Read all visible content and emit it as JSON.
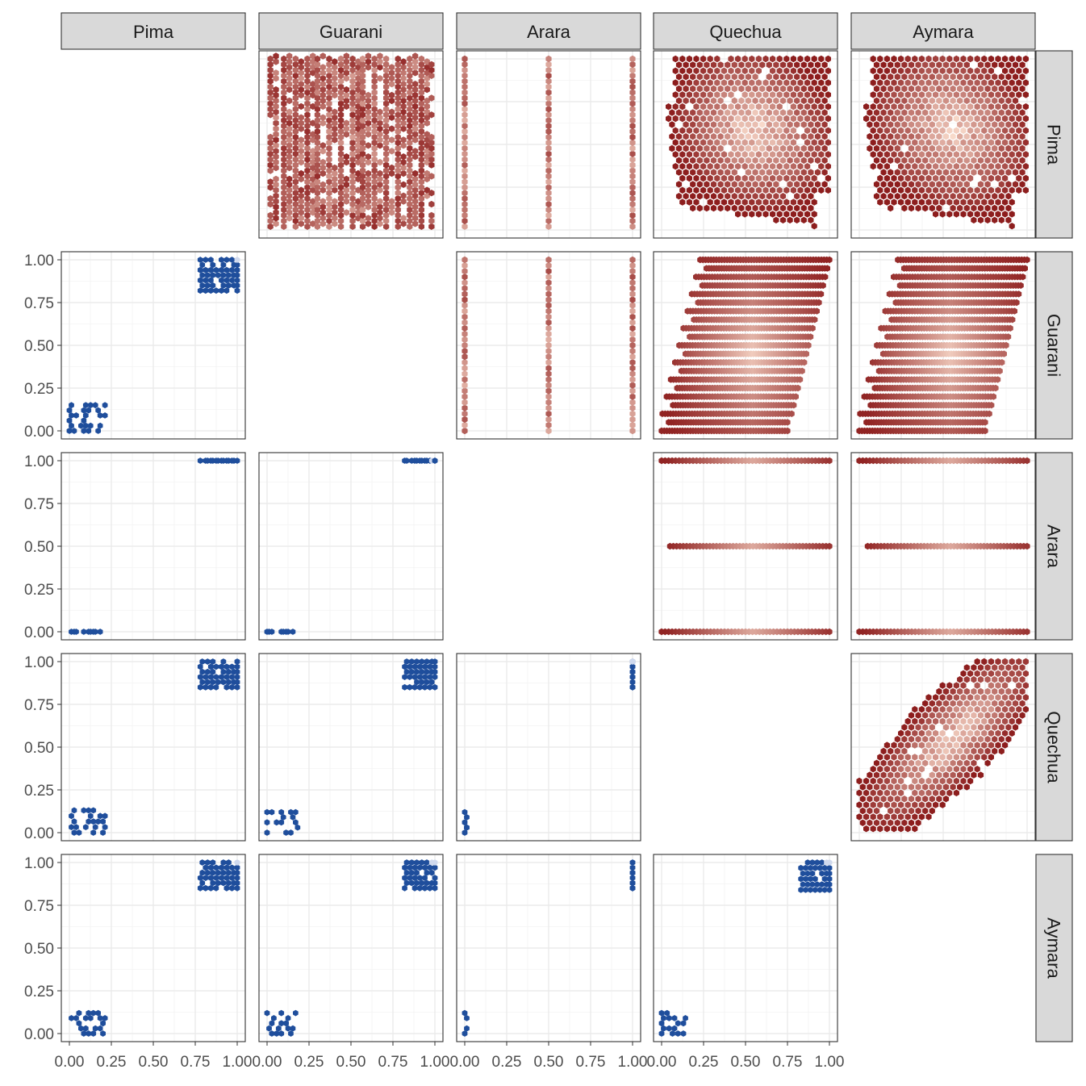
{
  "chart_data": {
    "type": "hexbin",
    "layout": "pairs-matrix",
    "variables": [
      "Pima",
      "Guarani",
      "Arara",
      "Quechua",
      "Aymara"
    ],
    "axis_range": [
      0,
      1
    ],
    "tick_labels": [
      "0.00",
      "0.25",
      "0.50",
      "0.75",
      "1.00"
    ],
    "grid": true,
    "upper_triangle": {
      "colors": {
        "low": "#8b1a1a",
        "high": "#fce0d0"
      },
      "panels": [
        {
          "x": "Guarani",
          "y": "Pima",
          "pattern": "vertical-stripes",
          "x_levels": [
            0.02,
            0.1,
            0.17,
            0.24,
            0.3,
            0.37,
            0.44,
            0.51,
            0.57,
            0.64,
            0.71,
            0.78,
            0.85,
            0.92,
            0.98
          ],
          "y_range": [
            0.02,
            1.0
          ]
        },
        {
          "x": "Arara",
          "y": "Pima",
          "pattern": "vertical-lines",
          "x_levels": [
            0.0,
            0.5,
            1.0
          ],
          "y_range": [
            0.02,
            1.0
          ]
        },
        {
          "x": "Quechua",
          "y": "Pima",
          "pattern": "cloud",
          "center": [
            0.55,
            0.6
          ],
          "spread": [
            0.5,
            0.5
          ],
          "tilt": 0.15
        },
        {
          "x": "Aymara",
          "y": "Pima",
          "pattern": "cloud",
          "center": [
            0.55,
            0.6
          ],
          "spread": [
            0.5,
            0.5
          ],
          "tilt": 0.15
        },
        {
          "x": "Arara",
          "y": "Guarani",
          "pattern": "vertical-lines",
          "x_levels": [
            0.0,
            0.5,
            1.0
          ],
          "y_range": [
            0.0,
            1.0
          ]
        },
        {
          "x": "Quechua",
          "y": "Guarani",
          "pattern": "horizontal-stripes",
          "y_levels": [
            0.0,
            0.05,
            0.1,
            0.15,
            0.2,
            0.25,
            0.3,
            0.35,
            0.4,
            0.45,
            0.5,
            0.55,
            0.6,
            0.65,
            0.7,
            0.75,
            0.8,
            0.85,
            0.9,
            0.95,
            1.0
          ],
          "x_range": [
            0.0,
            1.0
          ]
        },
        {
          "x": "Aymara",
          "y": "Guarani",
          "pattern": "horizontal-stripes",
          "y_levels": [
            0.0,
            0.05,
            0.1,
            0.15,
            0.2,
            0.25,
            0.3,
            0.35,
            0.4,
            0.45,
            0.5,
            0.55,
            0.6,
            0.65,
            0.7,
            0.75,
            0.8,
            0.85,
            0.9,
            0.95,
            1.0
          ],
          "x_range": [
            0.0,
            1.0
          ]
        },
        {
          "x": "Quechua",
          "y": "Arara",
          "pattern": "horizontal-lines",
          "y_levels": [
            0.0,
            0.5,
            1.0
          ],
          "x_range": [
            0.0,
            1.0
          ]
        },
        {
          "x": "Aymara",
          "y": "Arara",
          "pattern": "horizontal-lines",
          "y_levels": [
            0.0,
            0.5,
            1.0
          ],
          "x_range": [
            0.0,
            1.0
          ]
        },
        {
          "x": "Aymara",
          "y": "Quechua",
          "pattern": "diagonal-cloud",
          "center": [
            0.55,
            0.55
          ],
          "spread": [
            0.45,
            0.45
          ],
          "correlation": 0.85
        }
      ]
    },
    "lower_triangle": {
      "colors": {
        "point": "#1f4e9c",
        "light": "#cfd9ee"
      },
      "panels": [
        {
          "x": "Pima",
          "y": "Guarani",
          "clusters": [
            {
              "x": [
                0.0,
                0.2
              ],
              "y": [
                0.0,
                0.15
              ]
            },
            {
              "x": [
                0.78,
                1.0
              ],
              "y": [
                0.82,
                1.0
              ]
            }
          ]
        },
        {
          "x": "Pima",
          "y": "Arara",
          "clusters": [
            {
              "x": [
                0.0,
                0.2
              ],
              "y": [
                0.0,
                0.0
              ]
            },
            {
              "x": [
                0.78,
                1.0
              ],
              "y": [
                1.0,
                1.0
              ]
            }
          ]
        },
        {
          "x": "Guarani",
          "y": "Arara",
          "clusters": [
            {
              "x": [
                0.0,
                0.17
              ],
              "y": [
                0.0,
                0.0
              ]
            },
            {
              "x": [
                0.82,
                1.0
              ],
              "y": [
                1.0,
                1.0
              ]
            }
          ]
        },
        {
          "x": "Pima",
          "y": "Quechua",
          "clusters": [
            {
              "x": [
                0.0,
                0.2
              ],
              "y": [
                0.0,
                0.13
              ]
            },
            {
              "x": [
                0.78,
                1.0
              ],
              "y": [
                0.85,
                1.0
              ]
            }
          ]
        },
        {
          "x": "Guarani",
          "y": "Quechua",
          "clusters": [
            {
              "x": [
                0.0,
                0.17
              ],
              "y": [
                0.0,
                0.12
              ]
            },
            {
              "x": [
                0.82,
                1.0
              ],
              "y": [
                0.85,
                1.0
              ]
            }
          ]
        },
        {
          "x": "Arara",
          "y": "Quechua",
          "clusters": [
            {
              "x": [
                0.0,
                0.0
              ],
              "y": [
                0.0,
                0.12
              ]
            },
            {
              "x": [
                1.0,
                1.0
              ],
              "y": [
                0.85,
                1.0
              ]
            }
          ]
        },
        {
          "x": "Pima",
          "y": "Aymara",
          "clusters": [
            {
              "x": [
                0.0,
                0.2
              ],
              "y": [
                0.0,
                0.12
              ]
            },
            {
              "x": [
                0.78,
                1.0
              ],
              "y": [
                0.85,
                1.0
              ]
            }
          ]
        },
        {
          "x": "Guarani",
          "y": "Aymara",
          "clusters": [
            {
              "x": [
                0.0,
                0.17
              ],
              "y": [
                0.0,
                0.12
              ]
            },
            {
              "x": [
                0.82,
                1.0
              ],
              "y": [
                0.85,
                1.0
              ]
            }
          ]
        },
        {
          "x": "Arara",
          "y": "Aymara",
          "clusters": [
            {
              "x": [
                0.0,
                0.0
              ],
              "y": [
                0.0,
                0.12
              ]
            },
            {
              "x": [
                1.0,
                1.0
              ],
              "y": [
                0.85,
                1.0
              ]
            }
          ]
        },
        {
          "x": "Quechua",
          "y": "Aymara",
          "clusters": [
            {
              "x": [
                0.0,
                0.13
              ],
              "y": [
                0.0,
                0.12
              ]
            },
            {
              "x": [
                0.83,
                1.0
              ],
              "y": [
                0.84,
                1.0
              ]
            }
          ]
        }
      ]
    }
  }
}
